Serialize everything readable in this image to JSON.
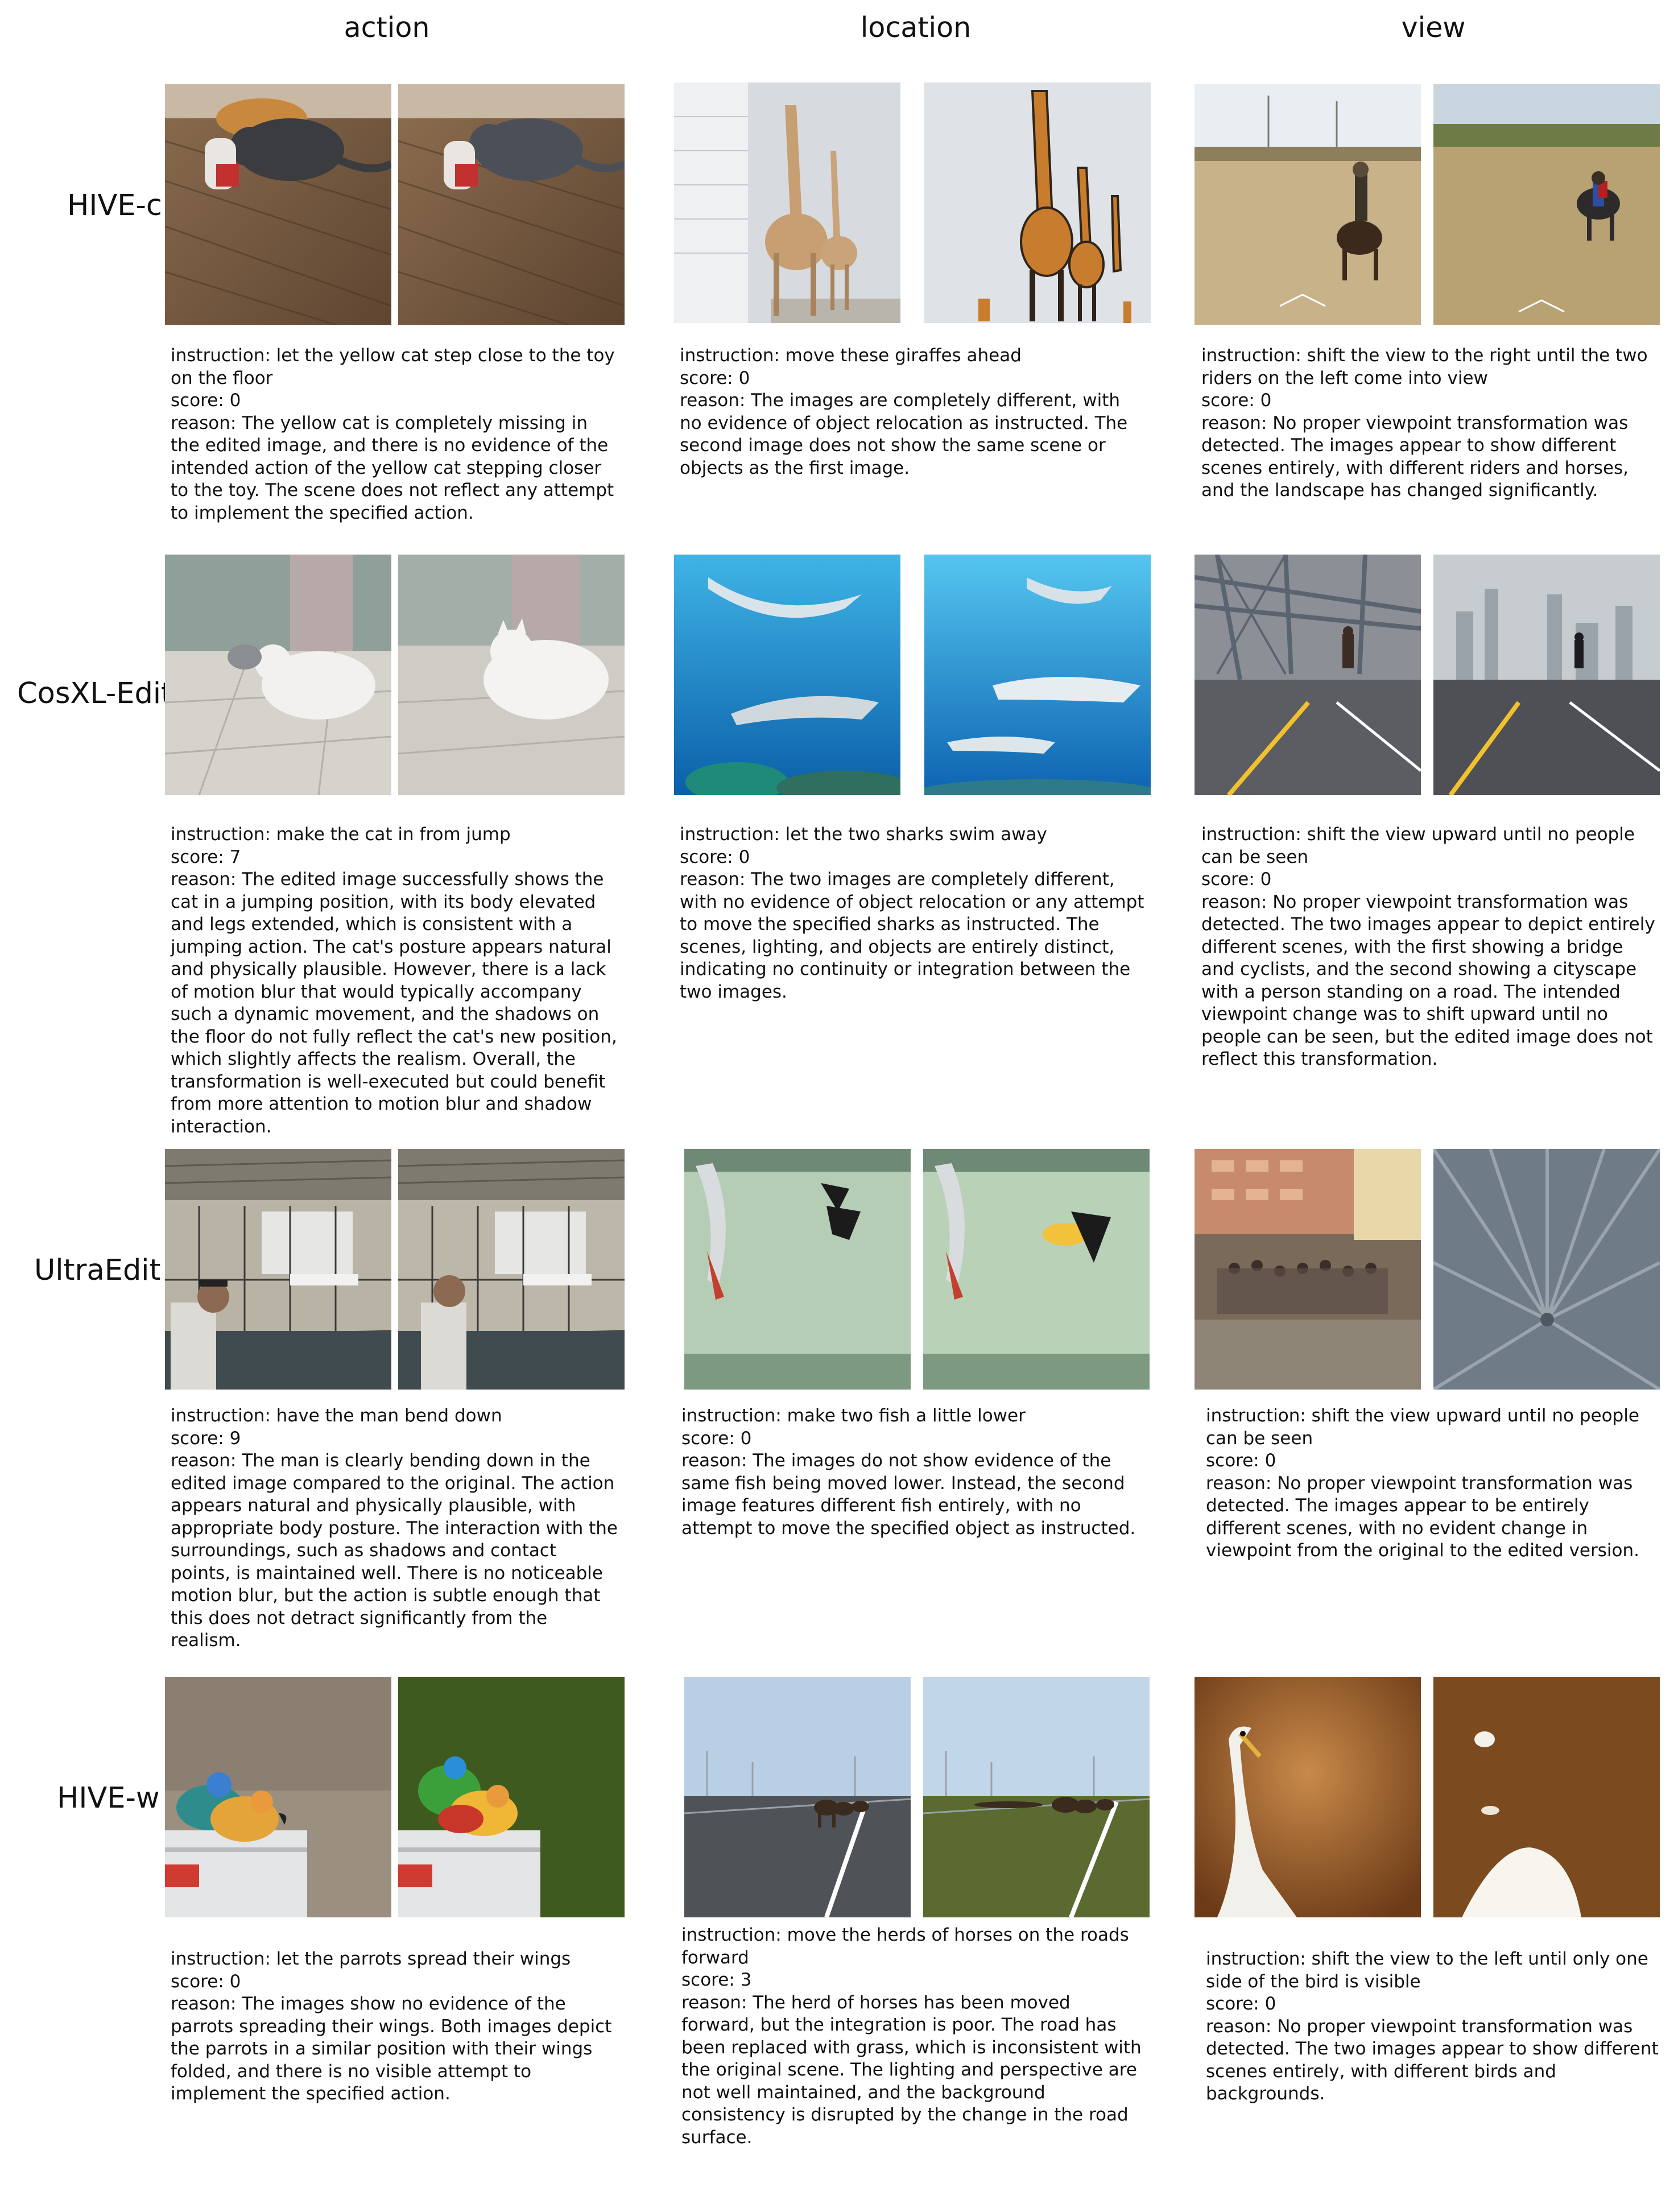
{
  "columns": [
    "action",
    "location",
    "view"
  ],
  "rows": [
    {
      "model": "HIVE-c",
      "cells": [
        {
          "instruction": "instruction: let the yellow cat step close to the toy on the floor",
          "score": "score: 0",
          "reason": "reason: The yellow cat is completely missing in the edited image, and there is no evidence of the intended action of the yellow cat stepping closer to the toy. The scene does not reflect any attempt to implement the specified action."
        },
        {
          "instruction": "instruction: move these giraffes ahead",
          "score": "score: 0",
          "reason": "reason: The images are completely different, with no evidence of object relocation as instructed. The second image does not show the same scene or objects as the first image."
        },
        {
          "instruction": "instruction: shift the view to the right until the two riders on the left come into view",
          "score": "score: 0",
          "reason": "reason: No proper viewpoint transformation was detected. The images appear to show different scenes entirely, with different riders and horses, and the landscape has changed significantly."
        }
      ]
    },
    {
      "model": "CosXL-Edit",
      "cells": [
        {
          "instruction": "instruction: make the cat in from jump",
          "score": "score: 7",
          "reason": "reason: The edited image successfully shows the cat in a jumping position, with its body elevated and legs extended, which is consistent with a jumping action. The cat's posture appears natural and physically plausible. However, there is a lack of motion blur that would typically accompany such a dynamic movement, and the shadows on the floor do not fully reflect the cat's new position, which slightly affects the realism. Overall, the transformation is well-executed but could benefit from more attention to motion blur and shadow interaction."
        },
        {
          "instruction": "instruction: let the two sharks swim away",
          "score": "score: 0",
          "reason": "reason: The two images are completely different, with no evidence of object relocation or any attempt to move the specified sharks as instructed. The scenes, lighting, and objects are entirely distinct, indicating no continuity or integration between the two images."
        },
        {
          "instruction": "instruction: shift the view upward until no people can be seen",
          "score": "score: 0",
          "reason": "reason: No proper viewpoint transformation was detected. The two images appear to depict entirely different scenes, with the first showing a bridge and cyclists, and the second showing a cityscape with a person standing on a road. The intended viewpoint change was to shift upward until no people can be seen, but the edited image does not reflect this transformation."
        }
      ]
    },
    {
      "model": "UltraEdit",
      "cells": [
        {
          "instruction": "instruction: have the man bend down",
          "score": "score: 9",
          "reason": "reason: The man is clearly bending down in the edited image compared to the original. The action appears natural and physically plausible, with appropriate body posture. The interaction with the surroundings, such as shadows and contact points, is maintained well. There is no noticeable motion blur, but the action is subtle enough that this does not detract significantly from the realism."
        },
        {
          "instruction": "instruction: make two fish a little lower",
          "score": "score: 0",
          "reason": "reason: The images do not show evidence of the same fish being moved lower. Instead, the second image features different fish entirely, with no attempt to move the specified object as instructed."
        },
        {
          "instruction": "instruction: shift the view upward until no people can be seen",
          "score": "score: 0",
          "reason": "reason: No proper viewpoint transformation was detected. The images appear to be entirely different scenes, with no evident change in viewpoint from the original to the edited version."
        }
      ]
    },
    {
      "model": "HIVE-w",
      "cells": [
        {
          "instruction": "instruction: let the parrots spread their wings",
          "score": "score: 0",
          "reason": "reason: The images show no evidence of the parrots spreading their wings. Both images depict the parrots in a similar position with their wings folded, and there is no visible attempt to implement the specified action."
        },
        {
          "instruction": "instruction: move the herds of horses on the roads forward",
          "score": "score: 3",
          "reason": "reason: The herd of horses has been moved forward, but the integration is poor. The road has been replaced with grass, which is inconsistent with the original scene. The lighting and perspective are not well maintained, and the background consistency is disrupted by the change in the road surface."
        },
        {
          "instruction": "instruction: shift the view to the left until only one side of the bird is visible",
          "score": "score: 0",
          "reason": "reason: No proper viewpoint transformation was detected. The two images appear to show different scenes entirely, with different birds and backgrounds."
        }
      ]
    }
  ]
}
